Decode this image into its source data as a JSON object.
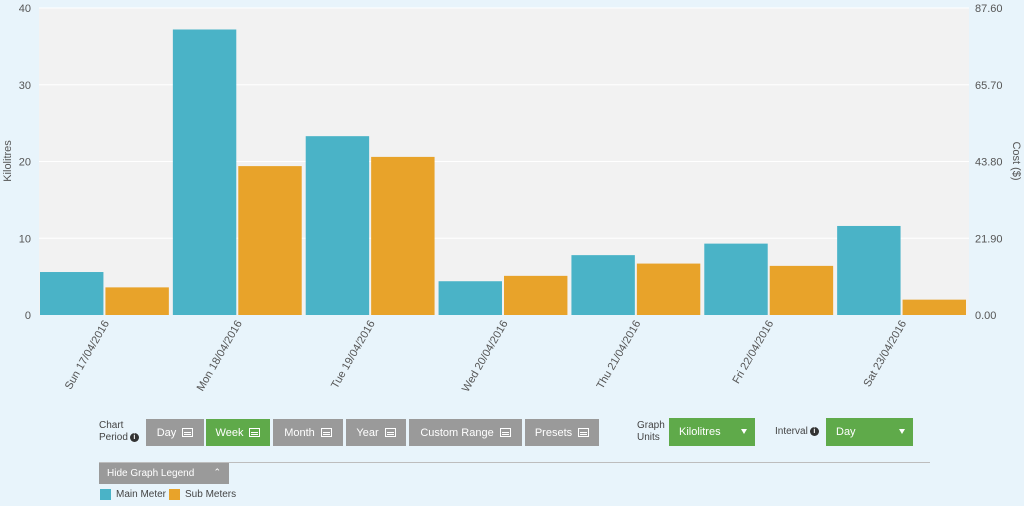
{
  "chart_data": {
    "type": "bar",
    "categories": [
      "Sun 17/04/2016",
      "Mon 18/04/2016",
      "Tue 19/04/2016",
      "Wed 20/04/2016",
      "Thu 21/04/2016",
      "Fri 22/04/2016",
      "Sat 23/04/2016"
    ],
    "series": [
      {
        "name": "Main Meter",
        "color": "#4ab3c7",
        "values": [
          5.6,
          37.2,
          23.3,
          4.4,
          7.8,
          9.3,
          11.6
        ]
      },
      {
        "name": "Sub Meters",
        "color": "#e8a32a",
        "values": [
          3.6,
          19.4,
          20.6,
          5.1,
          6.7,
          6.4,
          2.0
        ]
      }
    ],
    "ylabel": "Kilolitres",
    "ylim": [
      0,
      40
    ],
    "yticks": [
      "0",
      "10",
      "20",
      "30",
      "40"
    ],
    "y2label": "Cost ($)",
    "y2lim": [
      0,
      87.6
    ],
    "y2ticks": [
      "0.00",
      "21.90",
      "43.80",
      "65.70",
      "87.60"
    ],
    "grid": true,
    "legend": "bottom-left"
  },
  "controls": {
    "chart_period_line1": "Chart",
    "chart_period_line2": "Period",
    "period_buttons": [
      {
        "label": "Day",
        "active": false
      },
      {
        "label": "Week",
        "active": true
      },
      {
        "label": "Month",
        "active": false
      },
      {
        "label": "Year",
        "active": false
      },
      {
        "label": "Custom Range",
        "active": false
      },
      {
        "label": "Presets",
        "active": false
      }
    ],
    "graph_units_line1": "Graph",
    "graph_units_line2": "Units",
    "graph_units_value": "Kilolitres",
    "interval_label": "Interval",
    "interval_value": "Day",
    "info_glyph": "i",
    "legend_toggle": "Hide Graph Legend",
    "legend_toggle_glyph": "⌃"
  },
  "legend": [
    {
      "label": "Main Meter",
      "color": "#4ab3c7"
    },
    {
      "label": "Sub Meters",
      "color": "#e8a32a"
    }
  ]
}
